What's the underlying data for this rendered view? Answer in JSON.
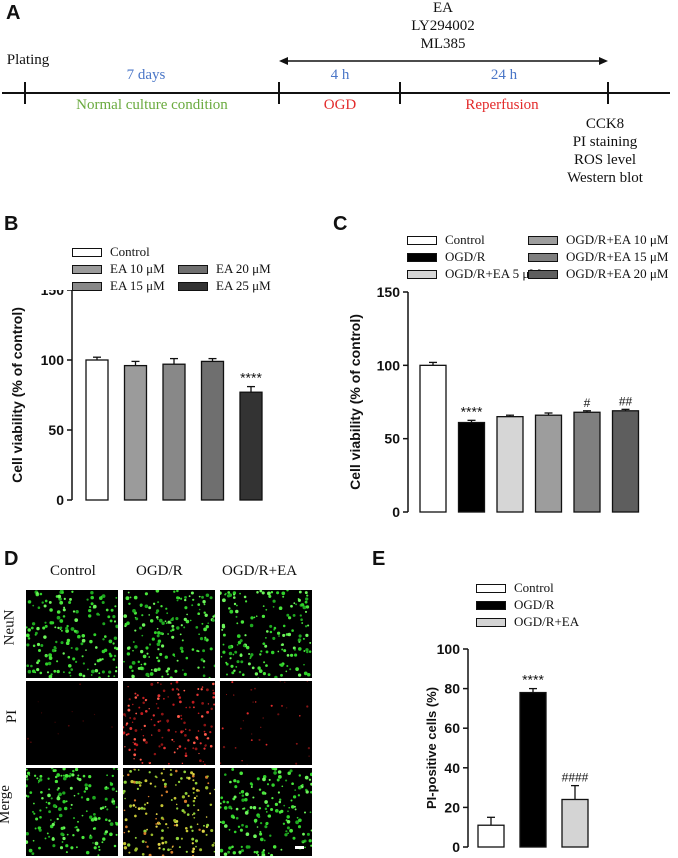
{
  "panels": {
    "a": "A",
    "b": "B",
    "c": "C",
    "d": "D",
    "e": "E"
  },
  "timeline": {
    "plating": "Plating",
    "days": "7 days",
    "normal": "Normal culture condition",
    "hours4": "4 h",
    "ogd": "OGD",
    "hours24": "24 h",
    "reperfusion": "Reperfusion",
    "treatments": [
      "EA",
      "LY294002",
      "ML385"
    ],
    "assays": [
      "CCK8",
      "PI staining",
      "ROS level",
      "Western blot"
    ],
    "colors": {
      "blue": "#4a76c7",
      "green": "#6aaa3e",
      "red": "#e32b2b"
    }
  },
  "panel_d": {
    "columns": [
      "Control",
      "OGD/R",
      "OGD/R+EA"
    ],
    "rows": [
      "NeuN",
      "PI",
      "Merge"
    ]
  },
  "chart_data": [
    {
      "type": "bar",
      "panel": "B",
      "ylabel": "Cell viability (% of control)",
      "ylim": [
        0,
        150
      ],
      "yticks": [
        "0",
        "50",
        "100",
        "150"
      ],
      "categories": [
        "Control",
        "EA 10 μM",
        "EA 15 μM",
        "EA 20 μM",
        "EA 25 μM"
      ],
      "values": [
        100,
        96,
        97,
        99,
        77
      ],
      "errors": [
        2,
        3,
        4,
        2,
        4
      ],
      "colors": [
        "#ffffff",
        "#9b9b9b",
        "#888888",
        "#6f6f6f",
        "#333333"
      ],
      "annotations": [
        "",
        "",
        "",
        "",
        "****"
      ]
    },
    {
      "type": "bar",
      "panel": "C",
      "ylabel": "Cell viability (% of control)",
      "ylim": [
        0,
        150
      ],
      "yticks": [
        "0",
        "50",
        "100",
        "150"
      ],
      "categories": [
        "Control",
        "OGD/R",
        "OGD/R+EA 5 μM",
        "OGD/R+EA 10 μM",
        "OGD/R+EA 15 μM",
        "OGD/R+EA 20 μM"
      ],
      "values": [
        100,
        61,
        65,
        66,
        68,
        69
      ],
      "errors": [
        2,
        1.5,
        1,
        1.5,
        1,
        1
      ],
      "colors": [
        "#ffffff",
        "#000000",
        "#d6d6d6",
        "#9d9d9d",
        "#7f7f7f",
        "#5e5e5e"
      ],
      "annotations": [
        "",
        "****",
        "",
        "",
        "#",
        "##"
      ]
    },
    {
      "type": "bar",
      "panel": "E",
      "ylabel": "PI-positive cells (%)",
      "ylim": [
        0,
        100
      ],
      "yticks": [
        "0",
        "20",
        "40",
        "60",
        "80",
        "100"
      ],
      "categories": [
        "Control",
        "OGD/R",
        "OGD/R+EA"
      ],
      "values": [
        11,
        78,
        24
      ],
      "errors": [
        4,
        2,
        7
      ],
      "colors": [
        "#ffffff",
        "#000000",
        "#d4d4d4"
      ],
      "annotations": [
        "",
        "****",
        "####"
      ]
    }
  ]
}
